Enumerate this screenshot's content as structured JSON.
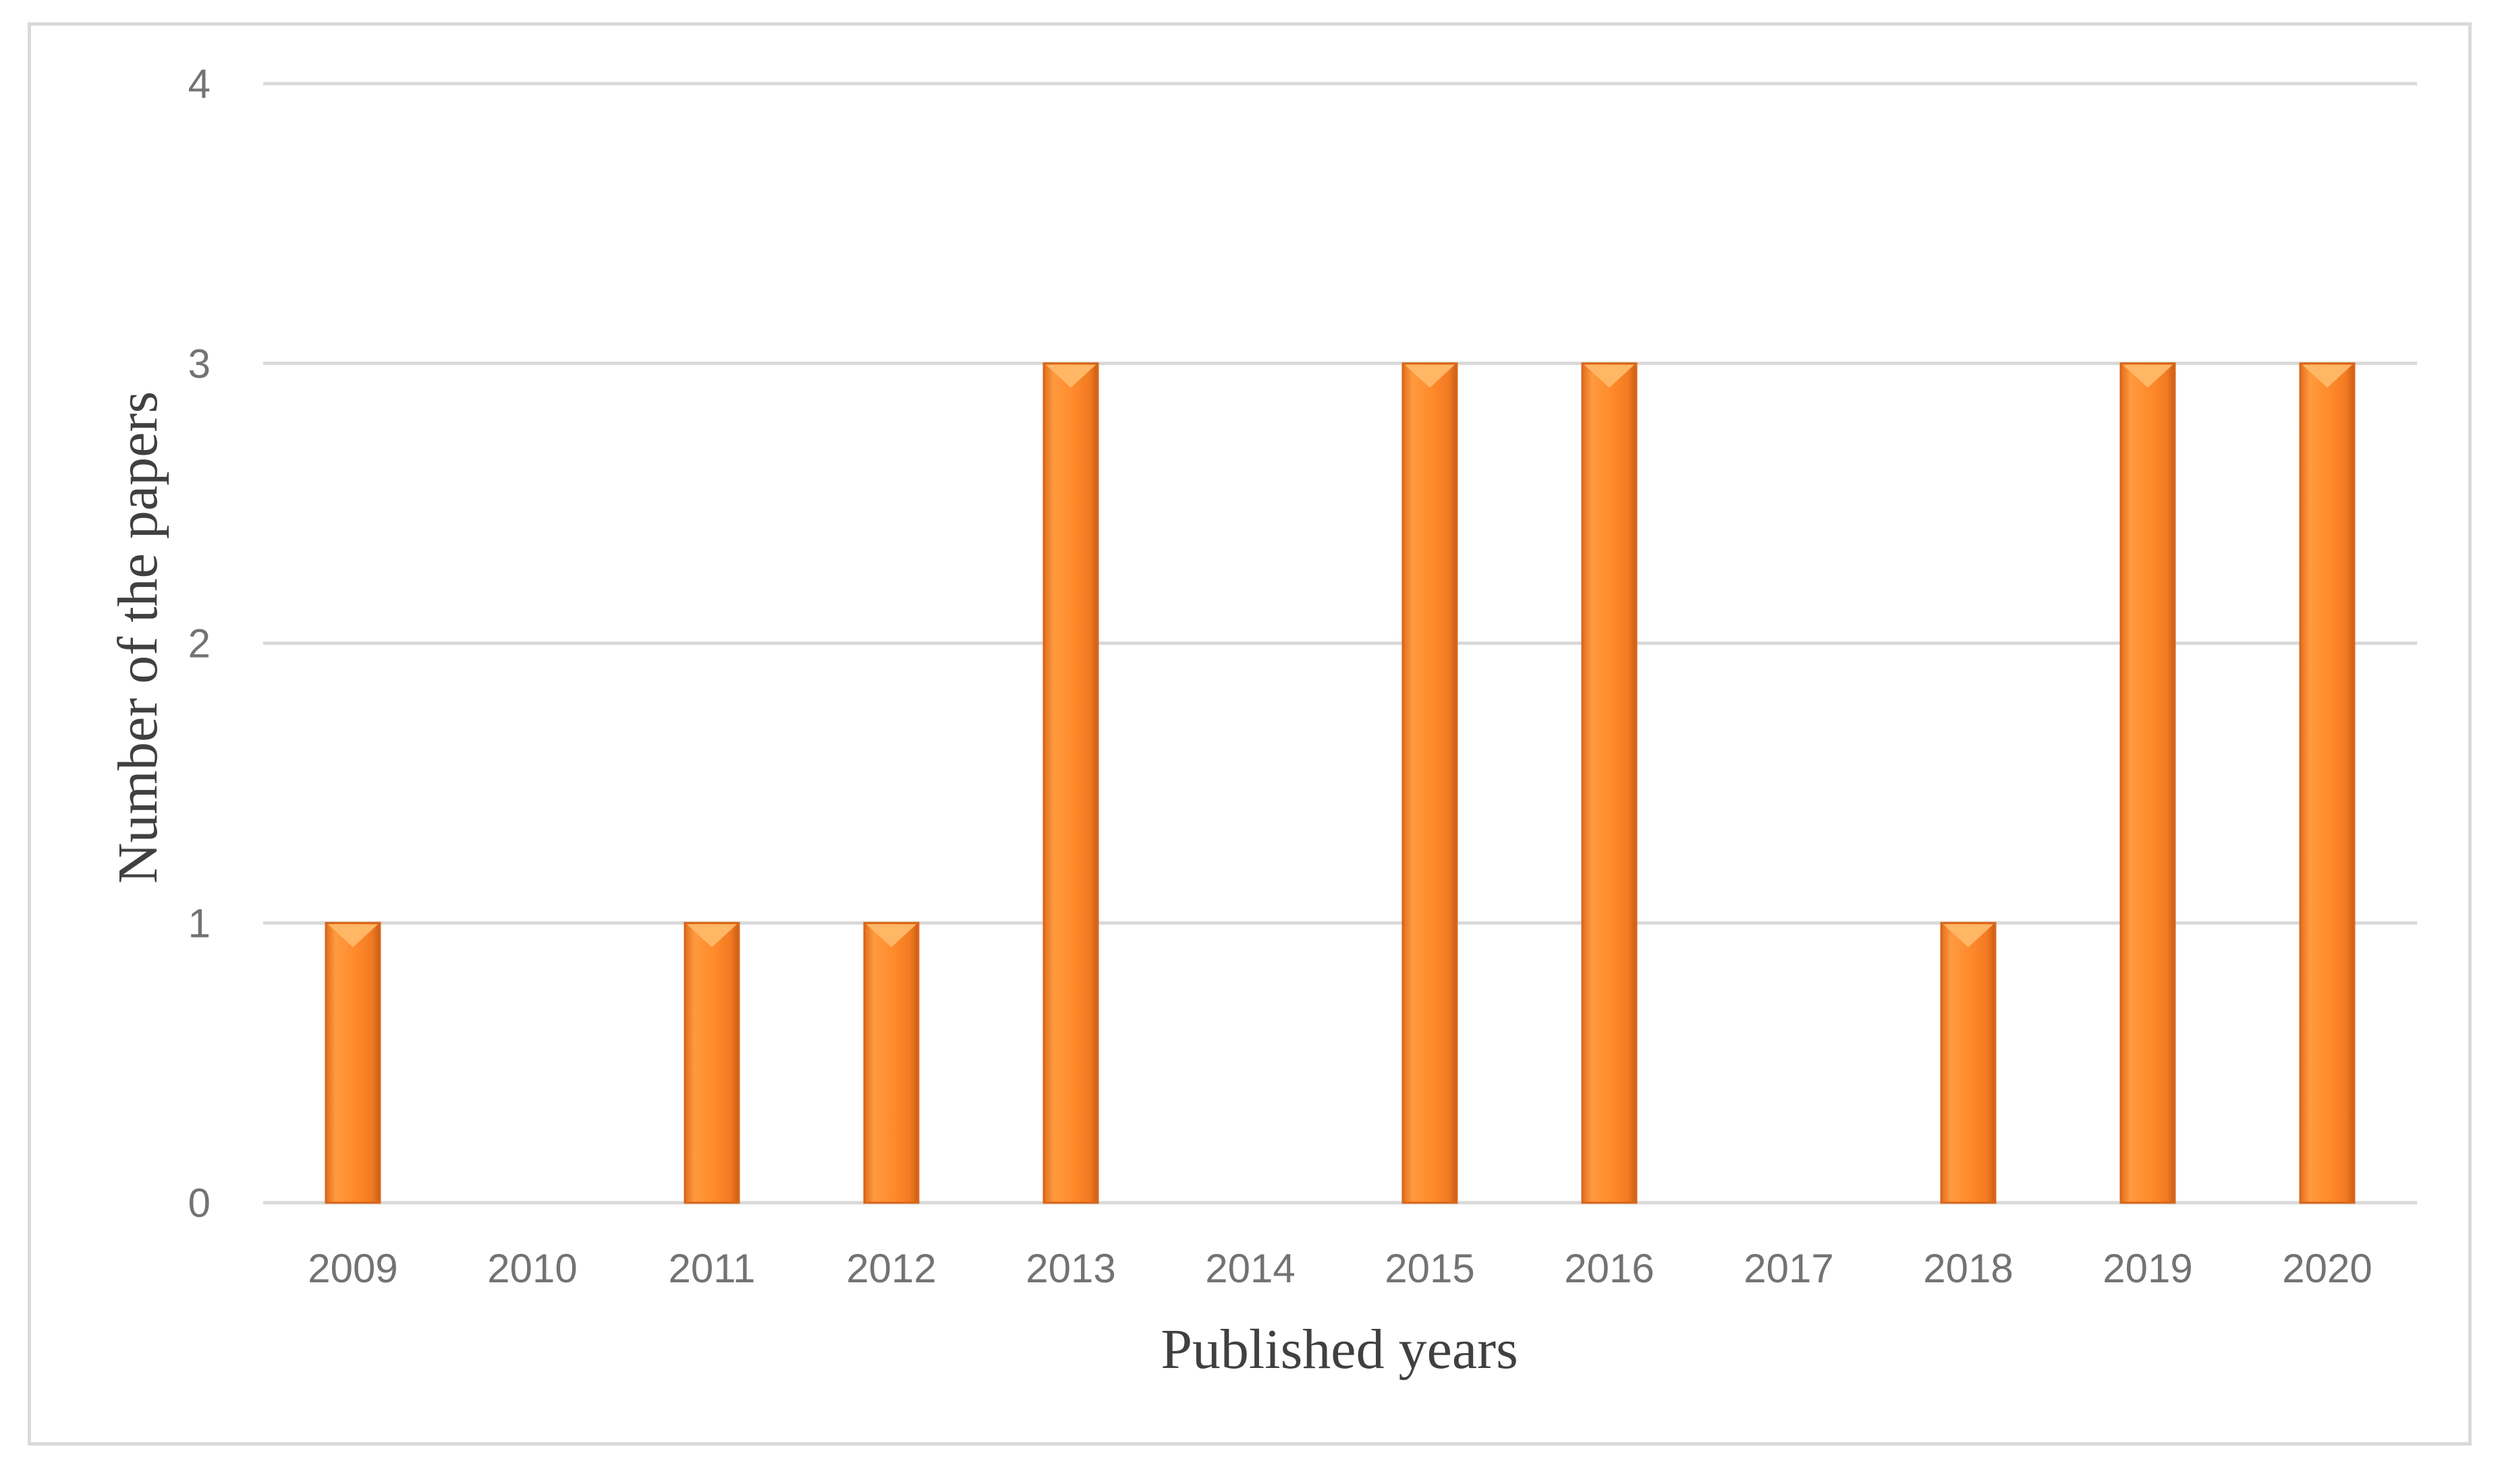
{
  "chart_data": {
    "type": "bar",
    "categories": [
      "2009",
      "2010",
      "2011",
      "2012",
      "2013",
      "2014",
      "2015",
      "2016",
      "2017",
      "2018",
      "2019",
      "2020"
    ],
    "values": [
      1,
      0,
      1,
      1,
      3,
      0,
      3,
      3,
      0,
      1,
      3,
      3
    ],
    "xlabel": "Published years",
    "ylabel": "Number of the papers",
    "ylim": [
      0,
      4
    ],
    "yticks": [
      0,
      1,
      2,
      3,
      4
    ],
    "grid": true,
    "legend": "none",
    "colors": {
      "bar": "#ff8a2b",
      "bar_edge": "#d8661a",
      "bar_cap": "#ffb766",
      "grid": "#d9d9d9",
      "tick_text": "#737373",
      "axis_title": "#404040"
    }
  }
}
